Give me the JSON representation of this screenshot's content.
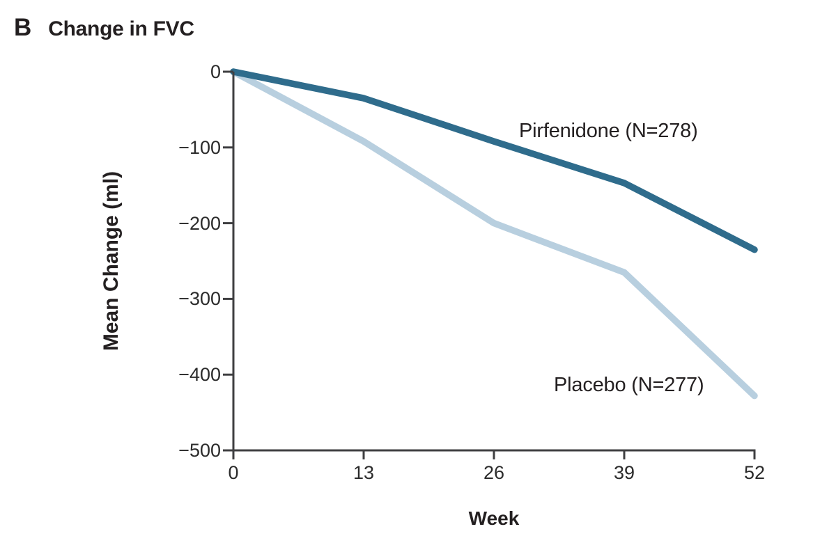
{
  "panel": {
    "letter": "B",
    "title": "Change in FVC"
  },
  "colors": {
    "pirfenidone_line": "#2f6c8c",
    "placebo_line": "#b8cfdf",
    "axis": "#3f3f41",
    "text": "#231f20"
  },
  "chart_data": {
    "type": "line",
    "title": "Change in FVC",
    "panel_letter": "B",
    "xlabel": "Week",
    "ylabel": "Mean Change (ml)",
    "x": [
      0,
      13,
      26,
      39,
      52
    ],
    "xtick_labels": [
      "0",
      "13",
      "26",
      "39",
      "52"
    ],
    "xlim": [
      0,
      52
    ],
    "yticks": [
      0,
      -100,
      -200,
      -300,
      -400,
      -500
    ],
    "ytick_labels": [
      "0",
      "−100",
      "−200",
      "−300",
      "−400",
      "−500"
    ],
    "ylim": [
      -500,
      0
    ],
    "grid": false,
    "legend_position": "inline-annotations",
    "series": [
      {
        "name": "Placebo (N=277)",
        "color": "#b8cfdf",
        "values": [
          0,
          -92,
          -200,
          -265,
          -428
        ]
      },
      {
        "name": "Pirfenidone (N=278)",
        "color": "#2f6c8c",
        "values": [
          0,
          -35,
          -92,
          -147,
          -235
        ]
      }
    ],
    "annotations": [
      {
        "text": "Pirfenidone (N=278)"
      },
      {
        "text": "Placebo (N=277)"
      }
    ]
  }
}
